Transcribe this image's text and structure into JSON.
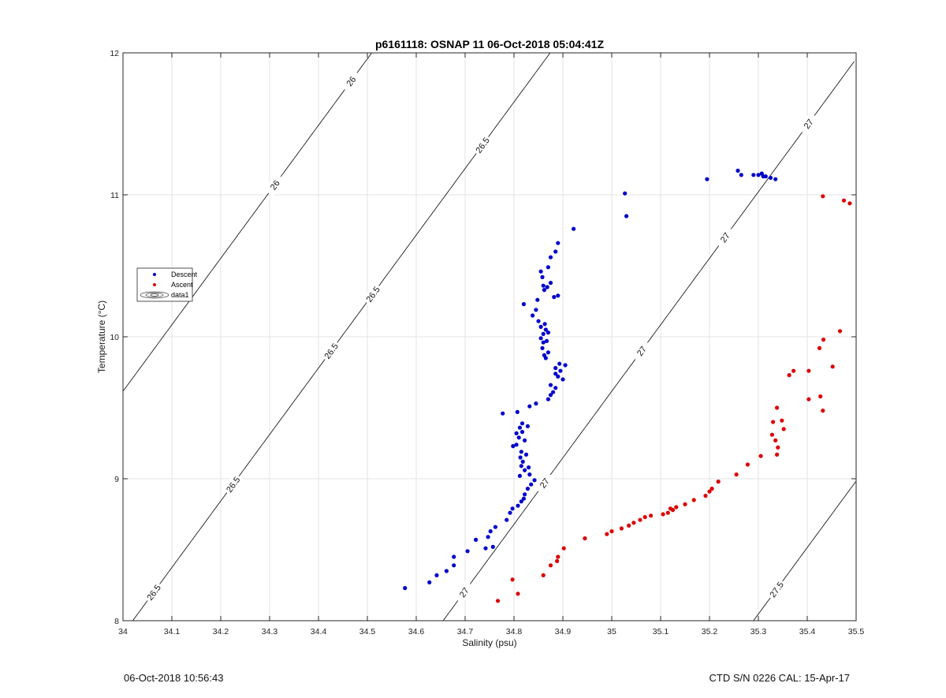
{
  "chart_data": {
    "type": "scatter",
    "title": "p6161118: OSNAP 11 06-Oct-2018 05:04:41Z",
    "xlabel": "Salinity (psu)",
    "ylabel": "Temperature (°C)",
    "xlim": [
      34,
      35.5
    ],
    "ylim": [
      8,
      12
    ],
    "xticks": [
      "34",
      "34.1",
      "34.2",
      "34.3",
      "34.4",
      "34.5",
      "34.6",
      "34.7",
      "34.8",
      "34.9",
      "35",
      "35.1",
      "35.2",
      "35.3",
      "35.4",
      "35.5"
    ],
    "yticks": [
      "8",
      "9",
      "10",
      "11",
      "12"
    ],
    "grid": true,
    "legend_position": "left",
    "legend": [
      "Descent",
      "Ascent",
      "data1"
    ],
    "series": [
      {
        "name": "Descent",
        "color": "#0000cc",
        "points": [
          [
            34.577,
            8.23
          ],
          [
            34.627,
            8.27
          ],
          [
            34.642,
            8.32
          ],
          [
            34.662,
            8.35
          ],
          [
            34.677,
            8.39
          ],
          [
            34.677,
            8.45
          ],
          [
            34.705,
            8.49
          ],
          [
            34.722,
            8.57
          ],
          [
            34.742,
            8.51
          ],
          [
            34.747,
            8.59
          ],
          [
            34.752,
            8.63
          ],
          [
            34.757,
            8.52
          ],
          [
            34.762,
            8.66
          ],
          [
            34.785,
            8.71
          ],
          [
            34.792,
            8.76
          ],
          [
            34.797,
            8.79
          ],
          [
            34.808,
            8.81
          ],
          [
            34.815,
            8.84
          ],
          [
            34.82,
            8.86
          ],
          [
            34.822,
            8.89
          ],
          [
            34.828,
            8.93
          ],
          [
            34.835,
            8.96
          ],
          [
            34.842,
            8.99
          ],
          [
            34.812,
            9.02
          ],
          [
            34.832,
            9.03
          ],
          [
            34.822,
            9.06
          ],
          [
            34.815,
            9.09
          ],
          [
            34.83,
            9.08
          ],
          [
            34.818,
            9.12
          ],
          [
            34.813,
            9.15
          ],
          [
            34.825,
            9.17
          ],
          [
            34.815,
            9.19
          ],
          [
            34.798,
            9.23
          ],
          [
            34.805,
            9.24
          ],
          [
            34.822,
            9.27
          ],
          [
            34.81,
            9.29
          ],
          [
            34.805,
            9.32
          ],
          [
            34.817,
            9.33
          ],
          [
            34.812,
            9.36
          ],
          [
            34.828,
            9.37
          ],
          [
            34.817,
            9.39
          ],
          [
            34.777,
            9.46
          ],
          [
            34.807,
            9.47
          ],
          [
            34.832,
            9.51
          ],
          [
            34.845,
            9.53
          ],
          [
            34.87,
            9.56
          ],
          [
            34.875,
            9.59
          ],
          [
            34.88,
            9.61
          ],
          [
            34.885,
            9.64
          ],
          [
            34.875,
            9.66
          ],
          [
            34.9,
            9.7
          ],
          [
            34.89,
            9.72
          ],
          [
            34.885,
            9.74
          ],
          [
            34.895,
            9.76
          ],
          [
            34.885,
            9.78
          ],
          [
            34.905,
            9.8
          ],
          [
            34.893,
            9.81
          ],
          [
            34.865,
            9.85
          ],
          [
            34.862,
            9.87
          ],
          [
            34.87,
            9.89
          ],
          [
            34.858,
            9.92
          ],
          [
            34.86,
            9.96
          ],
          [
            34.867,
            9.97
          ],
          [
            34.855,
            9.99
          ],
          [
            34.86,
            10.02
          ],
          [
            34.87,
            10.03
          ],
          [
            34.865,
            10.05
          ],
          [
            34.855,
            10.07
          ],
          [
            34.863,
            10.09
          ],
          [
            34.85,
            10.11
          ],
          [
            34.838,
            10.15
          ],
          [
            34.845,
            10.19
          ],
          [
            34.82,
            10.23
          ],
          [
            34.848,
            10.26
          ],
          [
            34.882,
            10.28
          ],
          [
            34.89,
            10.29
          ],
          [
            34.862,
            10.33
          ],
          [
            34.868,
            10.35
          ],
          [
            34.86,
            10.36
          ],
          [
            34.875,
            10.38
          ],
          [
            34.858,
            10.42
          ],
          [
            34.855,
            10.46
          ],
          [
            34.87,
            10.49
          ],
          [
            34.875,
            10.56
          ],
          [
            34.885,
            10.6
          ],
          [
            34.89,
            10.66
          ],
          [
            34.922,
            10.76
          ],
          [
            35.03,
            10.85
          ],
          [
            35.027,
            11.01
          ],
          [
            35.195,
            11.11
          ],
          [
            35.258,
            11.17
          ],
          [
            35.265,
            11.14
          ],
          [
            35.29,
            11.14
          ],
          [
            35.3,
            11.14
          ],
          [
            35.307,
            11.15
          ],
          [
            35.31,
            11.13
          ],
          [
            35.315,
            11.13
          ],
          [
            35.325,
            11.12
          ],
          [
            35.335,
            11.11
          ]
        ]
      },
      {
        "name": "Ascent",
        "color": "#dd0000",
        "points": [
          [
            34.767,
            8.14
          ],
          [
            34.797,
            8.29
          ],
          [
            34.808,
            8.19
          ],
          [
            34.86,
            8.32
          ],
          [
            34.875,
            8.39
          ],
          [
            34.888,
            8.42
          ],
          [
            34.89,
            8.45
          ],
          [
            34.902,
            8.51
          ],
          [
            34.945,
            8.58
          ],
          [
            34.99,
            8.61
          ],
          [
            35.0,
            8.63
          ],
          [
            35.02,
            8.65
          ],
          [
            35.035,
            8.67
          ],
          [
            35.045,
            8.69
          ],
          [
            35.058,
            8.71
          ],
          [
            35.068,
            8.73
          ],
          [
            35.08,
            8.74
          ],
          [
            35.105,
            8.75
          ],
          [
            35.115,
            8.76
          ],
          [
            35.12,
            8.79
          ],
          [
            35.125,
            8.78
          ],
          [
            35.132,
            8.8
          ],
          [
            35.15,
            8.82
          ],
          [
            35.168,
            8.85
          ],
          [
            35.192,
            8.88
          ],
          [
            35.2,
            8.91
          ],
          [
            35.205,
            8.93
          ],
          [
            35.218,
            8.98
          ],
          [
            35.255,
            9.03
          ],
          [
            35.278,
            9.1
          ],
          [
            35.305,
            9.16
          ],
          [
            35.338,
            9.17
          ],
          [
            35.34,
            9.22
          ],
          [
            35.335,
            9.27
          ],
          [
            35.328,
            9.31
          ],
          [
            35.352,
            9.35
          ],
          [
            35.33,
            9.4
          ],
          [
            35.348,
            9.41
          ],
          [
            35.338,
            9.5
          ],
          [
            35.432,
            9.48
          ],
          [
            35.403,
            9.56
          ],
          [
            35.427,
            9.58
          ],
          [
            35.363,
            9.73
          ],
          [
            35.372,
            9.76
          ],
          [
            35.403,
            9.76
          ],
          [
            35.452,
            9.79
          ],
          [
            35.425,
            9.92
          ],
          [
            35.433,
            9.98
          ],
          [
            35.467,
            10.04
          ],
          [
            35.432,
            10.99
          ],
          [
            35.475,
            10.96
          ],
          [
            35.487,
            10.94
          ]
        ]
      }
    ],
    "contours": [
      {
        "label": "26",
        "color": "#000000"
      },
      {
        "label": "26.5",
        "color": "#000000"
      },
      {
        "label": "27",
        "color": "#000000"
      },
      {
        "label": "27.5",
        "color": "#000000"
      }
    ]
  },
  "footer": {
    "timestamp": "06-Oct-2018 10:56:43",
    "instrument": "CTD S/N 0226  CAL: 15-Apr-17"
  }
}
